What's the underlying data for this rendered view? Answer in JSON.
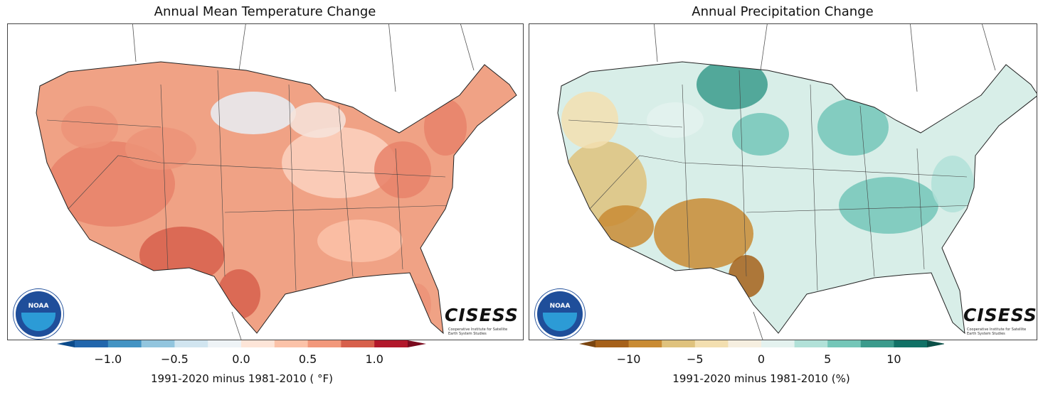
{
  "panels": [
    {
      "title": "Annual Mean Temperature Change",
      "colorbar": {
        "label": "1991-2020 minus 1981-2010 ( °F)",
        "bin_edges": [
          -1.25,
          -1.0,
          -0.75,
          -0.5,
          -0.25,
          0,
          0.25,
          0.5,
          0.75,
          1.0,
          1.25
        ],
        "colors": [
          "#2166ac",
          "#4393c3",
          "#92c5de",
          "#d1e5f0",
          "#eef3f6",
          "#fde5d8",
          "#fbc2a8",
          "#f2987b",
          "#d7604c",
          "#b2182b"
        ],
        "extend_colors": [
          "#0b4a8a",
          "#7a0a1e"
        ],
        "ticks": [
          "−1.0",
          "−0.5",
          "0.0",
          "0.5",
          "1.0"
        ],
        "tick_values": [
          -1.0,
          -0.5,
          0,
          0.5,
          1.0
        ]
      },
      "map_fill": "#f0a285"
    },
    {
      "title": "Annual Precipitation Change",
      "colorbar": {
        "label": "1991-2020 minus 1981-2010 (%)",
        "bin_edges": [
          -12.5,
          -10,
          -7.5,
          -5,
          -2.5,
          0,
          2.5,
          5,
          7.5,
          10,
          12.5
        ],
        "colors": [
          "#a6611a",
          "#c98b34",
          "#dfc27d",
          "#f3dfb0",
          "#f6efe0",
          "#e4f2ef",
          "#b1e1d8",
          "#74c6b8",
          "#3b9b8c",
          "#117166"
        ],
        "extend_colors": [
          "#7a4510",
          "#0a4f47"
        ],
        "ticks": [
          "−10",
          "−5",
          "0",
          "5",
          "10"
        ],
        "tick_values": [
          -10,
          -5,
          0,
          5,
          10
        ]
      },
      "map_fill": "#d8eee8"
    }
  ],
  "logos": {
    "noaa": "NOAA",
    "cisess": "CISESS",
    "cisess_sub": "Cooperative Institute for Satellite Earth System Studies"
  }
}
